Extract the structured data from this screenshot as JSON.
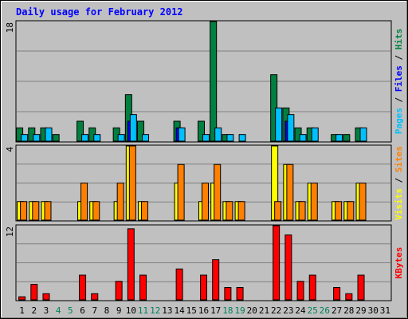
{
  "chart_data": {
    "type": "bar",
    "title": "Daily usage for February 2012",
    "categories": [
      "1",
      "2",
      "3",
      "4",
      "5",
      "6",
      "7",
      "8",
      "9",
      "10",
      "11",
      "12",
      "13",
      "14",
      "15",
      "16",
      "17",
      "18",
      "19",
      "20",
      "21",
      "22",
      "23",
      "24",
      "25",
      "26",
      "27",
      "28",
      "29",
      "30",
      "31"
    ],
    "weekend_days": [
      "4",
      "5",
      "11",
      "12",
      "18",
      "19",
      "25",
      "26"
    ],
    "panels": [
      {
        "id": "pages-files-hits",
        "max_label": "18",
        "ylim": [
          0,
          18
        ],
        "legend": [
          {
            "text": "Pages",
            "color": "#00c0ff"
          },
          {
            "text": " / ",
            "color": "#000000"
          },
          {
            "text": "Files",
            "color": "#0000ff"
          },
          {
            "text": " / ",
            "color": "#000000"
          },
          {
            "text": "Hits",
            "color": "#008040"
          }
        ],
        "series": [
          {
            "name": "Hits",
            "color": "#008040",
            "values": [
              2,
              2,
              2,
              1,
              0,
              3,
              2,
              0,
              2,
              7,
              3,
              0,
              0,
              3,
              0,
              3,
              18,
              1,
              0,
              0,
              0,
              10,
              5,
              2,
              2,
              0,
              1,
              1,
              2,
              0,
              0
            ]
          },
          {
            "name": "Files",
            "color": "#0000ff",
            "values": [
              0,
              0,
              0,
              0,
              0,
              0,
              0,
              0,
              0,
              3,
              0,
              0,
              0,
              2,
              0,
              0,
              0,
              0,
              0,
              0,
              0,
              0,
              3,
              0,
              0,
              0,
              0,
              0,
              0,
              0,
              0
            ]
          },
          {
            "name": "Pages",
            "color": "#00c0ff",
            "values": [
              1,
              1,
              2,
              0,
              0,
              1,
              1,
              0,
              1,
              4,
              1,
              0,
              0,
              2,
              0,
              1,
              2,
              1,
              1,
              0,
              0,
              5,
              4,
              1,
              2,
              0,
              1,
              0,
              2,
              0,
              0
            ]
          }
        ]
      },
      {
        "id": "visits-sites",
        "max_label": "4",
        "ylim": [
          0,
          4
        ],
        "legend": [
          {
            "text": "Visits",
            "color": "#ffff00"
          },
          {
            "text": " / ",
            "color": "#000000"
          },
          {
            "text": "Sites",
            "color": "#ff8000"
          }
        ],
        "series": [
          {
            "name": "Visits",
            "color": "#ffff00",
            "values": [
              1,
              1,
              1,
              0,
              0,
              1,
              1,
              0,
              1,
              4,
              1,
              0,
              0,
              2,
              0,
              1,
              2,
              1,
              1,
              0,
              0,
              4,
              3,
              1,
              2,
              0,
              1,
              1,
              2,
              0,
              0
            ]
          },
          {
            "name": "Sites",
            "color": "#ff8000",
            "values": [
              1,
              1,
              1,
              0,
              0,
              2,
              1,
              0,
              2,
              4,
              1,
              0,
              0,
              3,
              0,
              2,
              3,
              1,
              1,
              0,
              0,
              1,
              3,
              1,
              2,
              0,
              1,
              1,
              2,
              0,
              0
            ]
          }
        ]
      },
      {
        "id": "kbytes",
        "max_label": "12",
        "ylim": [
          0,
          12
        ],
        "legend": [
          {
            "text": "KBytes",
            "color": "#ff0000"
          }
        ],
        "series": [
          {
            "name": "KBytes",
            "color": "#ff0000",
            "values": [
              0.5,
              2.5,
              1,
              0,
              0,
              4,
              1,
              0,
              3,
              11.5,
              4,
              0,
              0,
              5,
              0,
              4,
              6.5,
              2,
              2,
              0,
              0,
              12,
              10.5,
              3,
              4,
              0,
              2,
              1,
              4,
              0,
              0
            ]
          }
        ]
      }
    ],
    "colors": {
      "background": "#c0c0c0",
      "title": "#0000ff",
      "grid": "#808080",
      "weekday_label": "#000000",
      "weekend_label": "#00805c"
    }
  }
}
